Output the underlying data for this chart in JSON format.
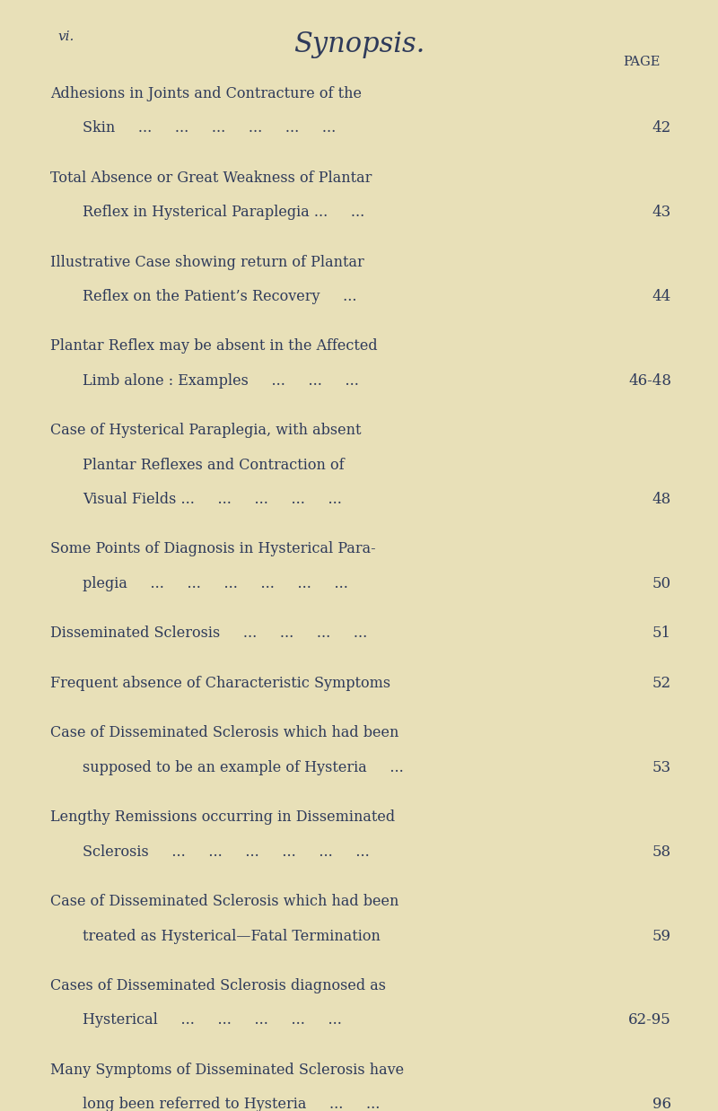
{
  "background_color": "#e8e0b8",
  "page_label": "vi.",
  "title": "Synopsis.",
  "page_col_label": "PAGE",
  "entries": [
    {
      "line1": "Adhesions in Joints and Contracture of the",
      "line2": "Skin     ...     ...     ...     ...     ...     ...",
      "page": "42",
      "indent2": true
    },
    {
      "line1": "Total Absence or Great Weakness of Plantar",
      "line2": "Reflex in Hysterical Paraplegia ...     ...",
      "page": "43",
      "indent2": true
    },
    {
      "line1": "Illustrative Case showing return of Plantar",
      "line2": "Reflex on the Patient’s Recovery     ...",
      "page": "44",
      "indent2": true
    },
    {
      "line1": "Plantar Reflex may be absent in the Affected",
      "line2": "Limb alone : Examples     ...     ...     ...",
      "page": "46-48",
      "indent2": true
    },
    {
      "line1": "Case of Hysterical Paraplegia, with absent",
      "line2": "Plantar Reflexes and Contraction of",
      "line3": "Visual Fields ...     ...     ...     ...     ...",
      "page": "48",
      "indent2": true
    },
    {
      "line1": "Some Points of Diagnosis in Hysterical Para-",
      "line2": "plegia     ...     ...     ...     ...     ...     ...",
      "page": "50",
      "indent2": true
    },
    {
      "line1": "Disseminated Sclerosis     ...     ...     ...     ...",
      "page": "51",
      "indent2": false
    },
    {
      "line1": "Frequent absence of Characteristic Symptoms",
      "page": "52",
      "indent2": false
    },
    {
      "line1": "Case of Disseminated Sclerosis which had been",
      "line2": "supposed to be an example of Hysteria     ...",
      "page": "53",
      "indent2": true
    },
    {
      "line1": "Lengthy Remissions occurring in Disseminated",
      "line2": "Sclerosis     ...     ...     ...     ...     ...     ...",
      "page": "58",
      "indent2": true
    },
    {
      "line1": "Case of Disseminated Sclerosis which had been",
      "line2": "treated as Hysterical—Fatal Termination",
      "page": "59",
      "indent2": true
    },
    {
      "line1": "Cases of Disseminated Sclerosis diagnosed as",
      "line2": "Hysterical     ...     ...     ...     ...     ...",
      "page": "62-95",
      "indent2": true
    },
    {
      "line1": "Many Symptoms of Disseminated Sclerosis have",
      "line2": "long been referred to Hysteria     ...     ...",
      "page": "96",
      "indent2": true
    }
  ],
  "text_color": "#2e3a5a",
  "title_font_size": 22,
  "header_font_size": 10.5,
  "body_font_size": 11.5,
  "page_num_font_size": 12,
  "label_font_size": 11
}
